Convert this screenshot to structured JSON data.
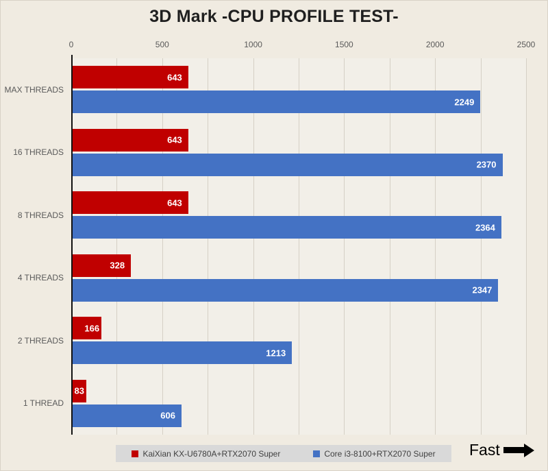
{
  "chart_data": {
    "type": "bar",
    "orientation": "horizontal",
    "title": "3D Mark -CPU PROFILE TEST-",
    "categories": [
      "MAX THREADS",
      "16 THREADS",
      "8 THREADS",
      "4 THREADS",
      "2 THREADS",
      "1 THREAD"
    ],
    "series": [
      {
        "name": "KaiXian KX-U6780A+RTX2070 Super",
        "color": "#c00000",
        "values": [
          643,
          643,
          643,
          328,
          166,
          83
        ]
      },
      {
        "name": "Core i3-8100+RTX2070 Super",
        "color": "#4472c4",
        "values": [
          2249,
          2370,
          2364,
          2347,
          1213,
          606
        ]
      }
    ],
    "xlim": [
      0,
      2500
    ],
    "x_ticks": [
      0,
      500,
      1000,
      1500,
      2000,
      2500
    ],
    "gridline_step": 250,
    "axis_position": "top",
    "legend_position": "bottom",
    "grid": "on"
  },
  "annotations": {
    "fast_label": "Fast"
  }
}
